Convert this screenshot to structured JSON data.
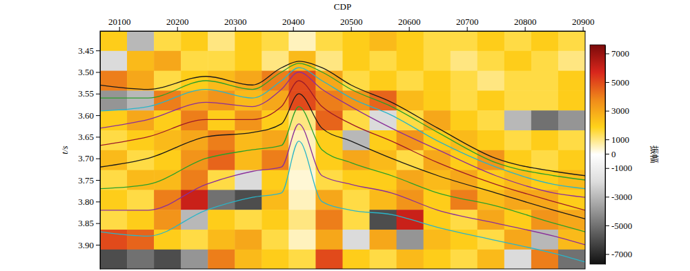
{
  "chart_data": {
    "type": "heatmap",
    "x_label": "CDP",
    "y_label": "t/s",
    "xlim": [
      20067,
      20904
    ],
    "xticks": [
      20100,
      20200,
      20300,
      20400,
      20500,
      20600,
      20700,
      20800,
      20900
    ],
    "ylim": [
      3.405,
      3.956
    ],
    "yticks": [
      3.45,
      {
        "value": 3.5,
        "label": "3.50"
      },
      3.55,
      {
        "value": 3.6,
        "label": "3.60"
      },
      3.65,
      {
        "value": 3.7,
        "label": "3.70"
      },
      3.75,
      {
        "value": 3.8,
        "label": "3.80"
      },
      3.85,
      {
        "value": 3.9,
        "label": "3.90"
      }
    ],
    "heatmap": {
      "x": [
        20090,
        20137,
        20183,
        20230,
        20276,
        20323,
        20369,
        20416,
        20462,
        20509,
        20555,
        20602,
        20648,
        20695,
        20741,
        20788,
        20834,
        20881
      ],
      "y": [
        3.428,
        3.474,
        3.52,
        3.566,
        3.612,
        3.658,
        3.704,
        3.75,
        3.796,
        3.842,
        3.888,
        3.934
      ],
      "values": [
        [
          2000,
          -3000,
          1500,
          2000,
          1000,
          2000,
          1500,
          500,
          1500,
          2000,
          2500,
          2000,
          1500,
          1500,
          2000,
          1500,
          2000,
          1500
        ],
        [
          -2000,
          2500,
          3000,
          1500,
          1500,
          2000,
          1000,
          2500,
          1000,
          2000,
          1500,
          2000,
          1500,
          1000,
          1500,
          2000,
          1500,
          1000
        ],
        [
          4000,
          3000,
          1500,
          2000,
          2500,
          3000,
          4000,
          5000,
          3000,
          1500,
          2000,
          1500,
          2000,
          1500,
          1000,
          1500,
          1500,
          2000
        ],
        [
          -4000,
          -3000,
          4000,
          3000,
          3500,
          2500,
          3000,
          5000,
          4000,
          3500,
          4500,
          2500,
          2000,
          1500,
          2000,
          1500,
          1500,
          2000
        ],
        [
          2000,
          3000,
          2000,
          4000,
          2000,
          3500,
          2000,
          1000,
          4500,
          1500,
          -2000,
          1500,
          3000,
          2000,
          1500,
          -3000,
          -5000,
          -4000
        ],
        [
          1500,
          2000,
          2500,
          3000,
          4000,
          2500,
          3000,
          500,
          2000,
          -3000,
          2000,
          3500,
          2000,
          2500,
          2000,
          1500,
          2000,
          1500
        ],
        [
          2500,
          1500,
          2000,
          3500,
          4500,
          2500,
          4000,
          500,
          2000,
          3000,
          2500,
          1500,
          3000,
          2000,
          3500,
          2000,
          1500,
          2000
        ],
        [
          1500,
          2500,
          2500,
          4000,
          1500,
          -2000,
          2000,
          300,
          1500,
          2000,
          2000,
          3000,
          2500,
          3000,
          2000,
          2500,
          2000,
          2500
        ],
        [
          2000,
          1500,
          4000,
          6000,
          -5000,
          -6000,
          2500,
          500,
          3000,
          1500,
          2500,
          3500,
          2000,
          4000,
          2500,
          3000,
          3000,
          2000
        ],
        [
          1500,
          2000,
          3500,
          -3000,
          2000,
          1500,
          2000,
          1000,
          4000,
          1500,
          -6000,
          6000,
          2000,
          1500,
          3000,
          2000,
          3500,
          3000
        ],
        [
          5000,
          4500,
          2000,
          1500,
          2500,
          3000,
          1500,
          500,
          3000,
          -2000,
          3000,
          -4000,
          2500,
          2000,
          1500,
          3000,
          -3000,
          2500
        ],
        [
          -6000,
          -5000,
          -6000,
          -4000,
          4000,
          2500,
          2000,
          1500,
          5000,
          2000,
          1500,
          2500,
          2000,
          1500,
          2500,
          -2000,
          4000,
          -5000
        ]
      ]
    },
    "colorbar": {
      "label": "振幅",
      "range": [
        -7700,
        7600
      ],
      "ticks": [
        7000,
        5000,
        3000,
        1000,
        0,
        -1000,
        -3000,
        -5000,
        -7000
      ],
      "colors": [
        "#111111",
        "#555555",
        "#9a9a9a",
        "#dcdcdc",
        "#ffffff",
        "#ffd21a",
        "#f08a1a",
        "#d8261c",
        "#7a0a0a"
      ]
    },
    "x": [
      20067,
      20150,
      20250,
      20330,
      20380,
      20410,
      20450,
      20500,
      20570,
      20650,
      20750,
      20850,
      20904
    ],
    "series": [
      {
        "color": "#1a1a1a",
        "values": [
          3.53,
          3.54,
          3.51,
          3.53,
          3.49,
          3.475,
          3.49,
          3.53,
          3.57,
          3.63,
          3.7,
          3.73,
          3.74
        ]
      },
      {
        "color": "#2aa02a",
        "values": [
          3.56,
          3.56,
          3.52,
          3.54,
          3.5,
          3.48,
          3.5,
          3.54,
          3.58,
          3.64,
          3.71,
          3.74,
          3.75
        ]
      },
      {
        "color": "#2ab5c8",
        "values": [
          3.59,
          3.58,
          3.54,
          3.56,
          3.52,
          3.49,
          3.52,
          3.56,
          3.6,
          3.66,
          3.72,
          3.76,
          3.77
        ]
      },
      {
        "color": "#8a2f9a",
        "values": [
          3.63,
          3.61,
          3.57,
          3.58,
          3.54,
          3.5,
          3.54,
          3.58,
          3.63,
          3.68,
          3.74,
          3.78,
          3.79
        ]
      },
      {
        "color": "#9a1a2a",
        "values": [
          3.67,
          3.65,
          3.61,
          3.61,
          3.58,
          3.52,
          3.58,
          3.62,
          3.66,
          3.71,
          3.76,
          3.8,
          3.82
        ]
      },
      {
        "color": "#1a1a1a",
        "values": [
          3.72,
          3.7,
          3.65,
          3.64,
          3.62,
          3.55,
          3.63,
          3.66,
          3.7,
          3.74,
          3.78,
          3.82,
          3.84
        ]
      },
      {
        "color": "#2aa02a",
        "values": [
          3.77,
          3.76,
          3.7,
          3.68,
          3.67,
          3.58,
          3.68,
          3.71,
          3.74,
          3.78,
          3.81,
          3.85,
          3.87
        ]
      },
      {
        "color": "#8a2f9a",
        "values": [
          3.82,
          3.82,
          3.76,
          3.73,
          3.72,
          3.62,
          3.74,
          3.76,
          3.78,
          3.82,
          3.85,
          3.88,
          3.9
        ]
      },
      {
        "color": "#2ab5c8",
        "values": [
          3.87,
          3.88,
          3.82,
          3.79,
          3.78,
          3.66,
          3.8,
          3.82,
          3.83,
          3.86,
          3.89,
          3.92,
          3.94
        ]
      }
    ]
  }
}
